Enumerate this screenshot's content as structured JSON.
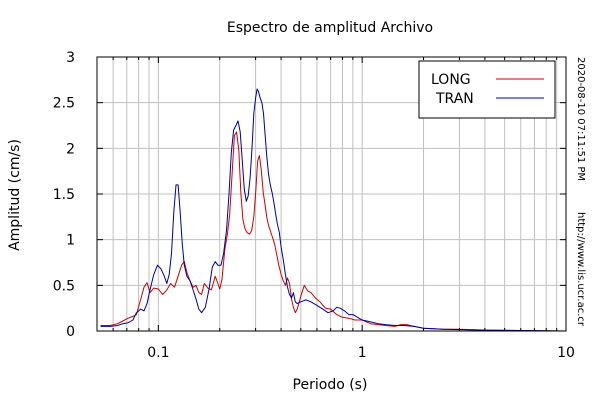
{
  "chart_data": {
    "type": "line",
    "title": "Espectro de amplitud Archivo",
    "xlabel": "Periodo (s)",
    "ylabel": "Amplitud (cm/s)",
    "xscale": "log",
    "xlim": [
      0.05,
      10
    ],
    "ylim": [
      0,
      3
    ],
    "grid": true,
    "legend_position": "top-right",
    "x_ticks": [
      {
        "value": 0.1,
        "label": "0.1"
      },
      {
        "value": 1,
        "label": "1"
      },
      {
        "value": 10,
        "label": "10"
      }
    ],
    "y_ticks": [
      {
        "value": 0,
        "label": "0"
      },
      {
        "value": 0.5,
        "label": "0.5"
      },
      {
        "value": 1,
        "label": "1"
      },
      {
        "value": 1.5,
        "label": "1.5"
      },
      {
        "value": 2,
        "label": "2"
      },
      {
        "value": 2.5,
        "label": "2.5"
      },
      {
        "value": 3,
        "label": "3"
      }
    ],
    "series": [
      {
        "name": "LONG",
        "color": "#cc0000",
        "points": [
          [
            0.052,
            0.06
          ],
          [
            0.058,
            0.06
          ],
          [
            0.063,
            0.08
          ],
          [
            0.067,
            0.11
          ],
          [
            0.071,
            0.14
          ],
          [
            0.075,
            0.16
          ],
          [
            0.078,
            0.18
          ],
          [
            0.082,
            0.35
          ],
          [
            0.085,
            0.48
          ],
          [
            0.088,
            0.53
          ],
          [
            0.091,
            0.42
          ],
          [
            0.095,
            0.47
          ],
          [
            0.1,
            0.46
          ],
          [
            0.105,
            0.4
          ],
          [
            0.11,
            0.45
          ],
          [
            0.115,
            0.52
          ],
          [
            0.12,
            0.48
          ],
          [
            0.125,
            0.6
          ],
          [
            0.13,
            0.72
          ],
          [
            0.134,
            0.76
          ],
          [
            0.138,
            0.64
          ],
          [
            0.143,
            0.55
          ],
          [
            0.148,
            0.48
          ],
          [
            0.153,
            0.5
          ],
          [
            0.158,
            0.42
          ],
          [
            0.163,
            0.4
          ],
          [
            0.168,
            0.52
          ],
          [
            0.175,
            0.47
          ],
          [
            0.182,
            0.45
          ],
          [
            0.19,
            0.6
          ],
          [
            0.196,
            0.52
          ],
          [
            0.2,
            0.46
          ],
          [
            0.205,
            0.56
          ],
          [
            0.212,
            0.9
          ],
          [
            0.218,
            1.05
          ],
          [
            0.224,
            1.28
          ],
          [
            0.23,
            1.72
          ],
          [
            0.236,
            2.14
          ],
          [
            0.242,
            2.18
          ],
          [
            0.248,
            1.98
          ],
          [
            0.254,
            1.5
          ],
          [
            0.26,
            1.22
          ],
          [
            0.266,
            1.12
          ],
          [
            0.272,
            1.08
          ],
          [
            0.28,
            1.06
          ],
          [
            0.287,
            1.1
          ],
          [
            0.294,
            1.25
          ],
          [
            0.301,
            1.55
          ],
          [
            0.307,
            1.86
          ],
          [
            0.313,
            1.92
          ],
          [
            0.32,
            1.76
          ],
          [
            0.327,
            1.52
          ],
          [
            0.334,
            1.38
          ],
          [
            0.34,
            1.25
          ],
          [
            0.348,
            1.15
          ],
          [
            0.356,
            1.08
          ],
          [
            0.364,
            1.02
          ],
          [
            0.372,
            0.95
          ],
          [
            0.38,
            0.85
          ],
          [
            0.39,
            0.72
          ],
          [
            0.4,
            0.62
          ],
          [
            0.41,
            0.55
          ],
          [
            0.42,
            0.5
          ],
          [
            0.43,
            0.58
          ],
          [
            0.44,
            0.52
          ],
          [
            0.45,
            0.35
          ],
          [
            0.46,
            0.26
          ],
          [
            0.47,
            0.2
          ],
          [
            0.48,
            0.24
          ],
          [
            0.5,
            0.38
          ],
          [
            0.52,
            0.5
          ],
          [
            0.54,
            0.44
          ],
          [
            0.56,
            0.42
          ],
          [
            0.59,
            0.36
          ],
          [
            0.62,
            0.32
          ],
          [
            0.66,
            0.25
          ],
          [
            0.7,
            0.24
          ],
          [
            0.75,
            0.18
          ],
          [
            0.8,
            0.15
          ],
          [
            0.86,
            0.14
          ],
          [
            0.92,
            0.12
          ],
          [
            1.0,
            0.12
          ],
          [
            1.1,
            0.08
          ],
          [
            1.2,
            0.07
          ],
          [
            1.3,
            0.06
          ],
          [
            1.45,
            0.05
          ],
          [
            1.55,
            0.07
          ],
          [
            1.65,
            0.07
          ],
          [
            1.8,
            0.05
          ],
          [
            2.0,
            0.03
          ],
          [
            2.5,
            0.02
          ],
          [
            3.0,
            0.02
          ],
          [
            4.0,
            0.01
          ],
          [
            6.0,
            0.005
          ],
          [
            10.0,
            0.0
          ]
        ]
      },
      {
        "name": "TRAN",
        "color": "#000099",
        "points": [
          [
            0.052,
            0.05
          ],
          [
            0.058,
            0.05
          ],
          [
            0.063,
            0.06
          ],
          [
            0.067,
            0.08
          ],
          [
            0.071,
            0.09
          ],
          [
            0.075,
            0.12
          ],
          [
            0.078,
            0.2
          ],
          [
            0.082,
            0.24
          ],
          [
            0.085,
            0.22
          ],
          [
            0.088,
            0.3
          ],
          [
            0.091,
            0.45
          ],
          [
            0.095,
            0.62
          ],
          [
            0.099,
            0.72
          ],
          [
            0.103,
            0.68
          ],
          [
            0.107,
            0.6
          ],
          [
            0.11,
            0.52
          ],
          [
            0.113,
            0.62
          ],
          [
            0.116,
            0.85
          ],
          [
            0.119,
            1.3
          ],
          [
            0.122,
            1.6
          ],
          [
            0.125,
            1.6
          ],
          [
            0.128,
            1.3
          ],
          [
            0.131,
            0.95
          ],
          [
            0.134,
            0.72
          ],
          [
            0.138,
            0.6
          ],
          [
            0.143,
            0.55
          ],
          [
            0.148,
            0.45
          ],
          [
            0.153,
            0.35
          ],
          [
            0.158,
            0.24
          ],
          [
            0.163,
            0.2
          ],
          [
            0.17,
            0.26
          ],
          [
            0.177,
            0.45
          ],
          [
            0.184,
            0.7
          ],
          [
            0.19,
            0.76
          ],
          [
            0.196,
            0.72
          ],
          [
            0.203,
            0.72
          ],
          [
            0.209,
            0.85
          ],
          [
            0.216,
            1.1
          ],
          [
            0.222,
            1.5
          ],
          [
            0.228,
            1.95
          ],
          [
            0.234,
            2.2
          ],
          [
            0.24,
            2.25
          ],
          [
            0.246,
            2.3
          ],
          [
            0.252,
            2.18
          ],
          [
            0.258,
            1.86
          ],
          [
            0.264,
            1.55
          ],
          [
            0.27,
            1.42
          ],
          [
            0.276,
            1.48
          ],
          [
            0.282,
            1.68
          ],
          [
            0.288,
            2.0
          ],
          [
            0.294,
            2.38
          ],
          [
            0.3,
            2.55
          ],
          [
            0.305,
            2.65
          ],
          [
            0.31,
            2.62
          ],
          [
            0.316,
            2.55
          ],
          [
            0.322,
            2.5
          ],
          [
            0.328,
            2.38
          ],
          [
            0.334,
            2.15
          ],
          [
            0.34,
            1.92
          ],
          [
            0.347,
            1.72
          ],
          [
            0.354,
            1.6
          ],
          [
            0.361,
            1.52
          ],
          [
            0.368,
            1.42
          ],
          [
            0.375,
            1.3
          ],
          [
            0.383,
            1.18
          ],
          [
            0.392,
            1.08
          ],
          [
            0.4,
            0.92
          ],
          [
            0.41,
            0.78
          ],
          [
            0.42,
            0.62
          ],
          [
            0.43,
            0.48
          ],
          [
            0.44,
            0.4
          ],
          [
            0.45,
            0.36
          ],
          [
            0.46,
            0.42
          ],
          [
            0.47,
            0.32
          ],
          [
            0.48,
            0.3
          ],
          [
            0.5,
            0.32
          ],
          [
            0.53,
            0.34
          ],
          [
            0.56,
            0.32
          ],
          [
            0.6,
            0.28
          ],
          [
            0.64,
            0.24
          ],
          [
            0.68,
            0.2
          ],
          [
            0.72,
            0.22
          ],
          [
            0.75,
            0.26
          ],
          [
            0.78,
            0.25
          ],
          [
            0.82,
            0.22
          ],
          [
            0.86,
            0.18
          ],
          [
            0.9,
            0.18
          ],
          [
            0.95,
            0.15
          ],
          [
            1.0,
            0.12
          ],
          [
            1.1,
            0.1
          ],
          [
            1.2,
            0.08
          ],
          [
            1.3,
            0.07
          ],
          [
            1.45,
            0.06
          ],
          [
            1.6,
            0.06
          ],
          [
            1.8,
            0.05
          ],
          [
            2.0,
            0.03
          ],
          [
            2.5,
            0.02
          ],
          [
            3.0,
            0.015
          ],
          [
            4.0,
            0.01
          ],
          [
            6.0,
            0.005
          ],
          [
            10.0,
            0.0
          ]
        ]
      }
    ]
  },
  "side_text": {
    "timestamp": "2020-08-10 07:11:51 PM",
    "url": "http://www.lis.ucr.ac.cr"
  }
}
